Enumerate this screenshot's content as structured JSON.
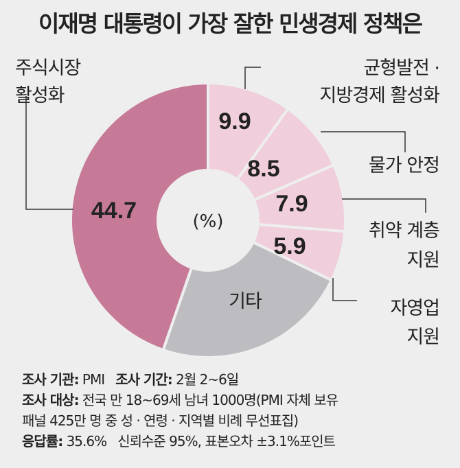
{
  "chart_data": {
    "type": "pie",
    "title": "이재명 대통령이 가장 잘한 민생경제 정책은",
    "unit_label": "(%)",
    "slices": [
      {
        "label": "균형발전 · 지방경제 활성화",
        "lines": [
          "균형발전 ·",
          "지방경제 활성화"
        ],
        "value": 9.9,
        "display": "9.9",
        "color": "#f0cedb"
      },
      {
        "label": "물가 안정",
        "lines": [
          "물가 안정"
        ],
        "value": 8.5,
        "display": "8.5",
        "color": "#f0cedb"
      },
      {
        "label": "취약 계층 지원",
        "lines": [
          "취약 계층",
          "지원"
        ],
        "value": 7.9,
        "display": "7.9",
        "color": "#f0cedb"
      },
      {
        "label": "자영업 지원",
        "lines": [
          "자영업",
          "지원"
        ],
        "value": 5.9,
        "display": "5.9",
        "color": "#f0cedb"
      },
      {
        "label": "기타",
        "lines": [],
        "value": 23.1,
        "display": "기타",
        "color": "#bdbcc0"
      },
      {
        "label": "주식시장 활성화",
        "lines": [
          "주식시장",
          "활성화"
        ],
        "value": 44.7,
        "display": "44.7",
        "color": "#c77a98"
      }
    ]
  },
  "footer": {
    "agency_label": "조사 기관:",
    "agency": "PMI",
    "period_label": "조사 기간:",
    "period": "2월 2~6일",
    "target_label": "조사 대상:",
    "target": "전국 만 18~69세 남녀 1000명(PMI 자체 보유",
    "target_cont": "패널 425만 명 중 성 · 연령 · 지역별 비례 무선표집)",
    "response_label": "응답률:",
    "response": "35.6%",
    "confidence": "신뢰수준 95%, 표본오차 ±3.1%포인트"
  }
}
